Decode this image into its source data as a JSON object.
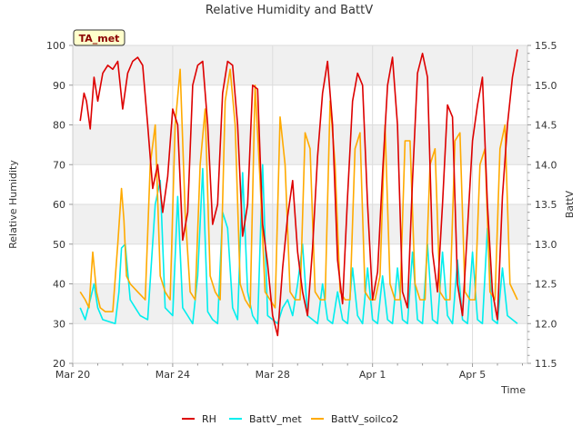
{
  "chart_data": {
    "type": "line",
    "title": "Relative Humidity and BattV",
    "badge": "TA_met",
    "xlabel": "Time",
    "ylabel": "Relative Humidity",
    "y2label": "BattV",
    "xlim": [
      0,
      18.2
    ],
    "ylim": [
      20,
      100
    ],
    "y2lim": [
      11.5,
      15.5
    ],
    "xticks": [
      {
        "value": 0,
        "label": "Mar 20"
      },
      {
        "value": 4,
        "label": "Mar 24"
      },
      {
        "value": 8,
        "label": "Mar 28"
      },
      {
        "value": 12,
        "label": "Apr 1"
      },
      {
        "value": 16,
        "label": "Apr 5"
      }
    ],
    "yticks": [
      20,
      30,
      40,
      50,
      60,
      70,
      80,
      90,
      100
    ],
    "y2ticks": [
      {
        "value": 11.5,
        "label": "11.5"
      },
      {
        "value": 12.0,
        "label": "12.0"
      },
      {
        "value": 12.5,
        "label": "12.5"
      },
      {
        "value": 13.0,
        "label": "13.0"
      },
      {
        "value": 13.5,
        "label": "13.5"
      },
      {
        "value": 14.0,
        "label": "14.0"
      },
      {
        "value": 14.5,
        "label": "14.5"
      },
      {
        "value": 15.0,
        "label": "15.0"
      },
      {
        "value": 15.5,
        "label": "15.5"
      }
    ],
    "bands": [
      [
        30,
        40
      ],
      [
        50,
        60
      ],
      [
        70,
        80
      ],
      [
        90,
        100
      ]
    ],
    "series": [
      {
        "name": "RH",
        "color": "#dd0000",
        "axis": "left",
        "x": [
          0.3,
          0.45,
          0.55,
          0.7,
          0.85,
          1.0,
          1.2,
          1.4,
          1.6,
          1.8,
          2.0,
          2.2,
          2.4,
          2.6,
          2.8,
          3.0,
          3.2,
          3.4,
          3.6,
          3.8,
          4.0,
          4.2,
          4.4,
          4.6,
          4.8,
          5.0,
          5.2,
          5.4,
          5.6,
          5.8,
          6.0,
          6.2,
          6.4,
          6.6,
          6.8,
          7.0,
          7.2,
          7.4,
          7.6,
          7.8,
          8.0,
          8.2,
          8.4,
          8.6,
          8.8,
          9.0,
          9.2,
          9.4,
          9.6,
          9.8,
          10.0,
          10.2,
          10.4,
          10.6,
          10.8,
          11.0,
          11.2,
          11.4,
          11.6,
          11.8,
          12.0,
          12.2,
          12.4,
          12.6,
          12.8,
          13.0,
          13.2,
          13.4,
          13.6,
          13.8,
          14.0,
          14.2,
          14.4,
          14.6,
          14.8,
          15.0,
          15.2,
          15.4,
          15.6,
          15.8,
          16.0,
          16.2,
          16.4,
          16.6,
          16.8,
          17.0,
          17.2,
          17.4,
          17.6,
          17.8
        ],
        "values": [
          81,
          88,
          86,
          79,
          92,
          86,
          93,
          95,
          94,
          96,
          84,
          93,
          96,
          97,
          95,
          80,
          64,
          70,
          58,
          67,
          84,
          80,
          51,
          58,
          90,
          95,
          96,
          80,
          55,
          60,
          88,
          96,
          95,
          80,
          52,
          60,
          90,
          89,
          55,
          45,
          32,
          27,
          44,
          57,
          66,
          48,
          38,
          32,
          49,
          72,
          88,
          96,
          80,
          46,
          35,
          62,
          86,
          93,
          90,
          60,
          36,
          43,
          68,
          90,
          97,
          80,
          38,
          34,
          66,
          93,
          98,
          92,
          48,
          38,
          60,
          85,
          82,
          40,
          32,
          54,
          76,
          85,
          92,
          60,
          38,
          31,
          62,
          80,
          92,
          99
        ]
      },
      {
        "name": "BattV_met",
        "color": "#00eeee",
        "axis": "right",
        "x": [
          0.3,
          0.5,
          0.7,
          0.85,
          1.0,
          1.2,
          1.5,
          1.7,
          1.85,
          1.95,
          2.1,
          2.3,
          2.5,
          2.7,
          3.0,
          3.3,
          3.5,
          3.7,
          4.0,
          4.2,
          4.4,
          4.6,
          4.8,
          5.0,
          5.2,
          5.4,
          5.6,
          5.8,
          6.0,
          6.2,
          6.4,
          6.6,
          6.8,
          7.0,
          7.2,
          7.4,
          7.6,
          7.8,
          8.0,
          8.2,
          8.4,
          8.6,
          8.8,
          9.0,
          9.2,
          9.4,
          9.6,
          9.8,
          10.0,
          10.2,
          10.4,
          10.6,
          10.8,
          11.0,
          11.2,
          11.4,
          11.6,
          11.8,
          12.0,
          12.2,
          12.4,
          12.6,
          12.8,
          13.0,
          13.2,
          13.4,
          13.6,
          13.8,
          14.0,
          14.2,
          14.4,
          14.6,
          14.8,
          15.0,
          15.2,
          15.4,
          15.6,
          15.8,
          16.0,
          16.2,
          16.4,
          16.6,
          16.8,
          17.0,
          17.2,
          17.4,
          17.6,
          17.8
        ],
        "values": [
          12.2,
          12.05,
          12.3,
          12.5,
          12.2,
          12.05,
          12.02,
          12.0,
          12.4,
          12.95,
          13.0,
          12.3,
          12.2,
          12.1,
          12.05,
          13.5,
          13.8,
          12.2,
          12.1,
          13.6,
          12.2,
          12.1,
          12.0,
          12.6,
          13.95,
          12.15,
          12.05,
          12.0,
          13.4,
          13.2,
          12.2,
          12.05,
          13.9,
          12.4,
          12.1,
          12.0,
          14.0,
          12.1,
          12.05,
          12.0,
          12.2,
          12.3,
          12.1,
          12.5,
          13.0,
          12.1,
          12.05,
          12.0,
          12.5,
          12.05,
          12.0,
          12.4,
          12.05,
          12.0,
          12.7,
          12.1,
          12.0,
          12.7,
          12.05,
          12.0,
          12.6,
          12.05,
          12.0,
          12.7,
          12.05,
          12.0,
          12.9,
          12.05,
          12.0,
          13.0,
          12.05,
          12.0,
          12.9,
          12.1,
          12.0,
          12.8,
          12.05,
          12.0,
          12.9,
          12.05,
          12.0,
          13.2,
          12.05,
          12.0,
          12.7,
          12.1,
          12.05,
          12.0
        ]
      },
      {
        "name": "BattV_soilco2",
        "color": "#ffaa00",
        "axis": "right",
        "x": [
          0.3,
          0.5,
          0.65,
          0.8,
          0.95,
          1.1,
          1.3,
          1.6,
          1.8,
          1.95,
          2.05,
          2.15,
          2.3,
          2.6,
          2.9,
          3.1,
          3.3,
          3.5,
          3.7,
          3.9,
          4.1,
          4.3,
          4.5,
          4.7,
          4.9,
          5.1,
          5.3,
          5.5,
          5.7,
          5.9,
          6.1,
          6.3,
          6.5,
          6.7,
          6.9,
          7.1,
          7.3,
          7.5,
          7.7,
          7.9,
          8.1,
          8.3,
          8.5,
          8.7,
          8.9,
          9.1,
          9.3,
          9.5,
          9.7,
          9.9,
          10.1,
          10.3,
          10.5,
          10.7,
          10.9,
          11.1,
          11.3,
          11.5,
          11.7,
          11.9,
          12.1,
          12.3,
          12.5,
          12.7,
          12.9,
          13.1,
          13.3,
          13.5,
          13.7,
          13.9,
          14.1,
          14.3,
          14.5,
          14.7,
          14.9,
          15.1,
          15.3,
          15.5,
          15.7,
          15.9,
          16.1,
          16.3,
          16.5,
          16.7,
          16.9,
          17.1,
          17.3,
          17.5,
          17.8
        ],
        "values": [
          12.4,
          12.3,
          12.2,
          12.9,
          12.4,
          12.2,
          12.15,
          12.15,
          13.0,
          13.7,
          13.3,
          12.6,
          12.5,
          12.4,
          12.3,
          14.0,
          14.5,
          12.6,
          12.4,
          12.3,
          14.5,
          15.2,
          13.4,
          12.4,
          12.3,
          14.0,
          14.7,
          12.6,
          12.4,
          12.3,
          14.8,
          15.2,
          14.5,
          12.5,
          12.3,
          12.2,
          15.0,
          13.8,
          12.4,
          12.3,
          12.2,
          14.6,
          14.0,
          12.4,
          12.3,
          12.3,
          14.4,
          14.2,
          12.4,
          12.3,
          12.3,
          14.8,
          14.0,
          12.4,
          12.3,
          12.3,
          14.2,
          14.4,
          12.4,
          12.3,
          12.3,
          12.6,
          14.5,
          12.5,
          12.3,
          12.3,
          14.3,
          14.3,
          12.5,
          12.3,
          12.3,
          14.0,
          14.2,
          12.4,
          12.3,
          12.3,
          14.3,
          14.4,
          12.4,
          12.3,
          12.3,
          14.0,
          14.2,
          12.4,
          12.3,
          14.2,
          14.5,
          12.5,
          12.3
        ]
      }
    ],
    "legend": [
      {
        "label": "RH",
        "color": "#dd0000"
      },
      {
        "label": "BattV_met",
        "color": "#00eeee"
      },
      {
        "label": "BattV_soilco2",
        "color": "#ffaa00"
      }
    ]
  }
}
